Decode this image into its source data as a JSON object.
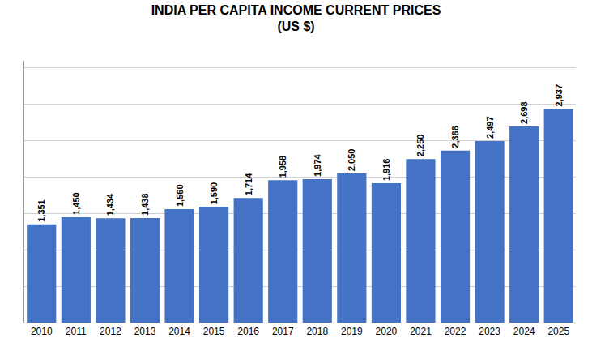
{
  "chart_data": {
    "type": "bar",
    "title": "INDIA PER CAPITA INCOME CURRENT PRICES",
    "subtitle": "(US $)",
    "categories": [
      "2010",
      "2011",
      "2012",
      "2013",
      "2014",
      "2015",
      "2016",
      "2017",
      "2018",
      "2019",
      "2020",
      "2021",
      "2022",
      "2023",
      "2024",
      "2025"
    ],
    "values": [
      1351,
      1450,
      1434,
      1438,
      1560,
      1590,
      1714,
      1958,
      1974,
      2050,
      1916,
      2250,
      2366,
      2497,
      2698,
      2937
    ],
    "value_labels": [
      "1,351",
      "1,450",
      "1,434",
      "1,438",
      "1,560",
      "1,590",
      "1,714",
      "1,958",
      "1,974",
      "2,050",
      "1,916",
      "2,250",
      "2,366",
      "2,497",
      "2,698",
      "2,937"
    ],
    "data_labels": true,
    "color": "#4472C4",
    "ylim": [
      0,
      3600
    ],
    "yticks": [
      0,
      500,
      1000,
      1500,
      2000,
      2500,
      3000,
      3500
    ],
    "grid": true,
    "tick_labels": "x"
  }
}
